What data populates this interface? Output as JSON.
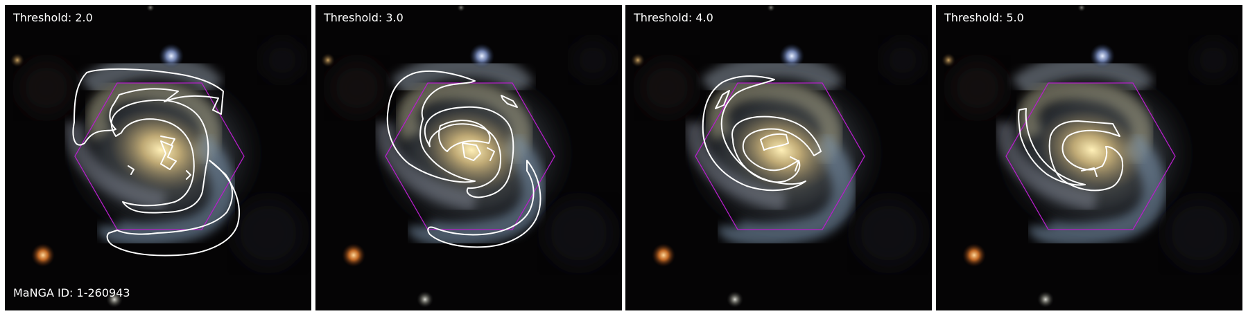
{
  "manga_id": "MaNGA ID: 1-260943",
  "panels": [
    {
      "threshold": "Threshold: 2.0"
    },
    {
      "threshold": "Threshold: 3.0"
    },
    {
      "threshold": "Threshold: 4.0"
    },
    {
      "threshold": "Threshold: 5.0"
    }
  ],
  "colors": {
    "background": "#050405",
    "hexagon": "#b41ec8",
    "contour": "#ffffff",
    "galaxy_core": "#d8c590",
    "galaxy_arms": "#7f95a8"
  }
}
